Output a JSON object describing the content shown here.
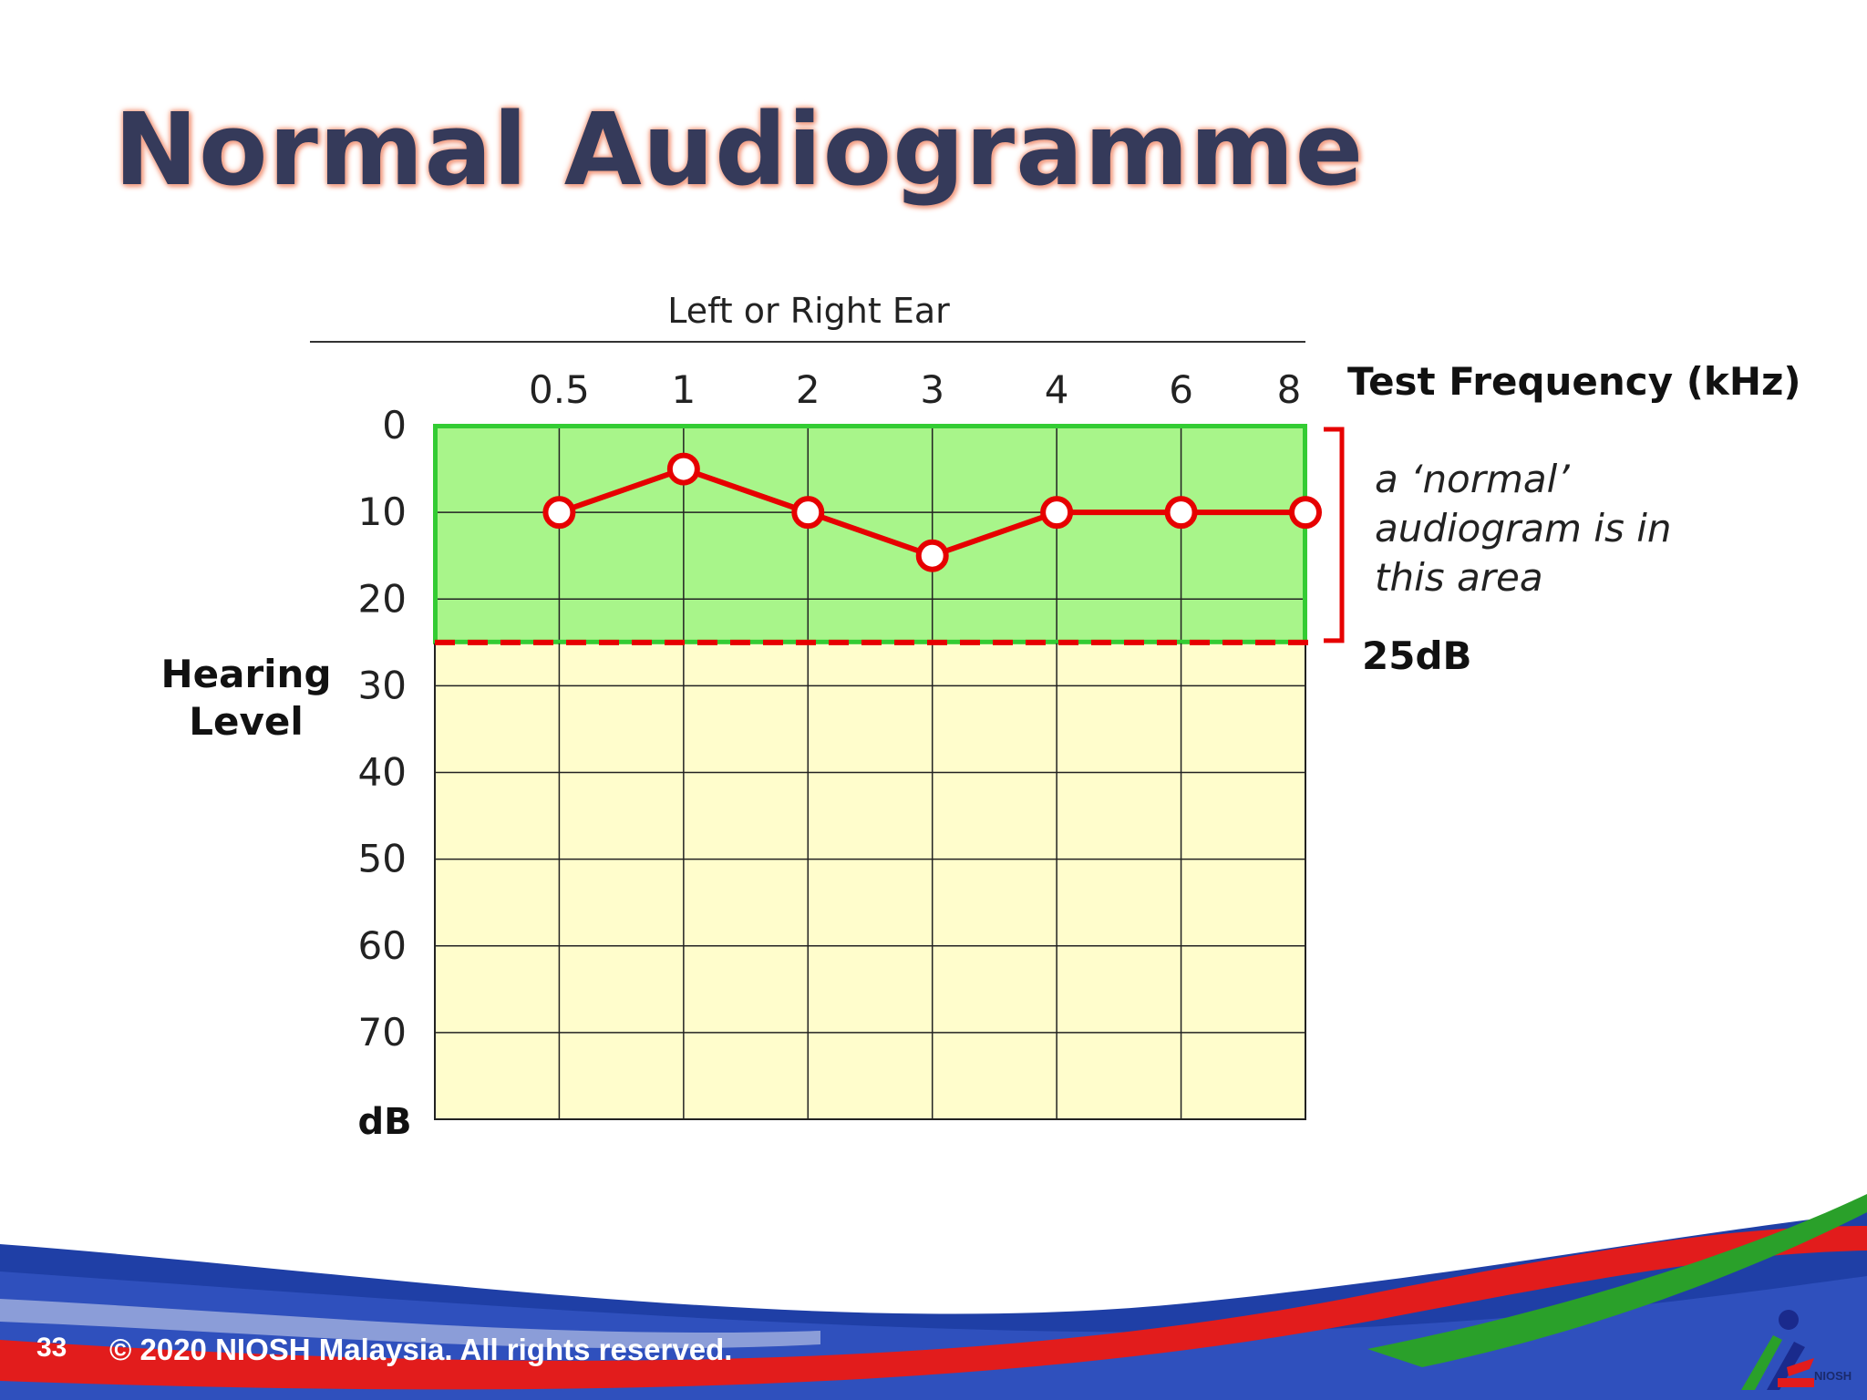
{
  "slide": {
    "title": "Normal Audiogramme",
    "page_number": "33",
    "footer": "© 2020 NIOSH Malaysia. All rights reserved.",
    "logo_label": "NIOSH"
  },
  "chart_data": {
    "type": "line",
    "title": "Left or Right Ear",
    "xlabel": "Test Frequency (kHz)",
    "ylabel": "Hearing Level",
    "yunit": "dB",
    "categories": [
      "0.5",
      "1",
      "2",
      "3",
      "4",
      "6",
      "8"
    ],
    "yticks": [
      "0",
      "10",
      "20",
      "30",
      "40",
      "50",
      "60",
      "70"
    ],
    "ylim": [
      0,
      80
    ],
    "y_inverted": true,
    "grid": true,
    "series": [
      {
        "values": [
          10,
          5,
          10,
          15,
          10,
          10,
          10
        ],
        "color": "#e60000"
      }
    ],
    "normal_zone": {
      "range": [
        0,
        25
      ],
      "threshold_label": "25dB",
      "annotation": [
        "a ‘normal’",
        "audiogram is in",
        "this area"
      ],
      "fill": "#a8f58a",
      "border": "#33cc33"
    },
    "colors": {
      "below_zone": "#fffdcc",
      "threshold_line": "#e60000"
    }
  }
}
